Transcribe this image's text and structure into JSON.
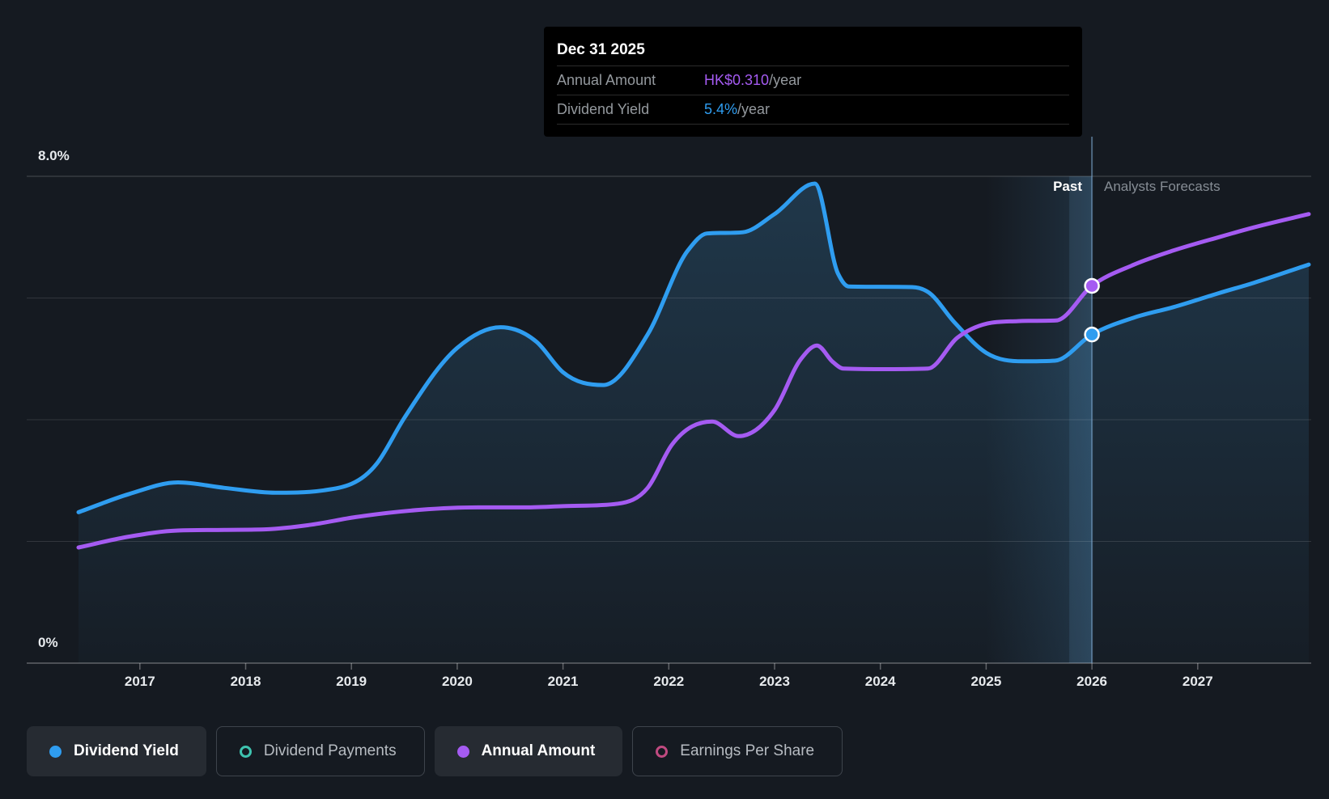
{
  "labels": {
    "past": "Past",
    "forecasts": "Analysts Forecasts"
  },
  "tooltip": {
    "date": "Dec 31 2025",
    "rows": [
      {
        "label": "Annual Amount",
        "value": "HK$0.310",
        "unit": "/year",
        "color": "#A55BF2"
      },
      {
        "label": "Dividend Yield",
        "value": "5.4%",
        "unit": "/year",
        "color": "#2F9DF0"
      }
    ]
  },
  "legend": [
    {
      "label": "Dividend Yield",
      "swatch": "filled",
      "color": "#2F9DF0",
      "active": true
    },
    {
      "label": "Dividend Payments",
      "swatch": "ring",
      "color": "#3EC3AF",
      "active": false
    },
    {
      "label": "Annual Amount",
      "swatch": "filled",
      "color": "#A55BF2",
      "active": true
    },
    {
      "label": "Earnings Per Share",
      "swatch": "ring",
      "color": "#C04A80",
      "active": false
    }
  ],
  "chart_data": {
    "type": "line",
    "x_domain": [
      2016.42,
      2028.07
    ],
    "x_ticks": [
      2017,
      2018,
      2019,
      2020,
      2021,
      2022,
      2023,
      2024,
      2025,
      2026,
      2027
    ],
    "y_axis": {
      "min": 0,
      "max": 8,
      "unit": "%",
      "grid_values": [
        2,
        4,
        6,
        8
      ],
      "labels": [
        {
          "value": 8,
          "text": "8.0%"
        },
        {
          "value": 0,
          "text": "0%"
        }
      ]
    },
    "today_x": 2026.0,
    "highlight_band": [
      2025.0,
      2026.0
    ],
    "legend_position": "bottom",
    "series": [
      {
        "name": "Dividend Yield",
        "color": "#2F9DF0",
        "area": true,
        "marker": [
          2026.0,
          5.4
        ],
        "points": [
          [
            2016.42,
            2.48
          ],
          [
            2016.9,
            2.78
          ],
          [
            2017.36,
            2.97
          ],
          [
            2017.8,
            2.88
          ],
          [
            2018.28,
            2.8
          ],
          [
            2018.74,
            2.84
          ],
          [
            2019.24,
            3.28
          ],
          [
            2019.5,
            4.03
          ],
          [
            2020.0,
            5.18
          ],
          [
            2020.41,
            5.52
          ],
          [
            2020.75,
            5.28
          ],
          [
            2021.0,
            4.78
          ],
          [
            2021.38,
            4.57
          ],
          [
            2021.8,
            5.4
          ],
          [
            2022.18,
            6.78
          ],
          [
            2022.36,
            7.06
          ],
          [
            2022.7,
            7.08
          ],
          [
            2023.0,
            7.38
          ],
          [
            2023.38,
            7.88
          ],
          [
            2023.6,
            6.4
          ],
          [
            2023.7,
            6.19
          ],
          [
            2024.3,
            6.18
          ],
          [
            2024.45,
            6.1
          ],
          [
            2024.7,
            5.6
          ],
          [
            2025.0,
            5.1
          ],
          [
            2025.35,
            4.96
          ],
          [
            2025.65,
            4.97
          ],
          [
            2026.0,
            5.4
          ],
          [
            2026.4,
            5.68
          ],
          [
            2026.77,
            5.85
          ],
          [
            2027.2,
            6.08
          ],
          [
            2027.53,
            6.25
          ],
          [
            2028.05,
            6.55
          ]
        ]
      },
      {
        "name": "Annual Amount",
        "color": "#A55BF2",
        "area": false,
        "marker": [
          2026.0,
          6.2
        ],
        "points": [
          [
            2016.42,
            1.9
          ],
          [
            2016.9,
            2.08
          ],
          [
            2017.36,
            2.18
          ],
          [
            2017.8,
            2.19
          ],
          [
            2018.2,
            2.2
          ],
          [
            2018.6,
            2.27
          ],
          [
            2019.04,
            2.4
          ],
          [
            2019.65,
            2.52
          ],
          [
            2020.2,
            2.56
          ],
          [
            2020.65,
            2.56
          ],
          [
            2021.0,
            2.58
          ],
          [
            2021.52,
            2.62
          ],
          [
            2021.8,
            2.88
          ],
          [
            2022.03,
            3.59
          ],
          [
            2022.41,
            3.97
          ],
          [
            2022.66,
            3.73
          ],
          [
            2023.0,
            4.16
          ],
          [
            2023.25,
            5.0
          ],
          [
            2023.4,
            5.22
          ],
          [
            2023.55,
            4.95
          ],
          [
            2023.65,
            4.84
          ],
          [
            2024.0,
            4.83
          ],
          [
            2024.45,
            4.84
          ],
          [
            2024.73,
            5.35
          ],
          [
            2025.01,
            5.58
          ],
          [
            2025.3,
            5.62
          ],
          [
            2025.66,
            5.63
          ],
          [
            2026.0,
            6.2
          ],
          [
            2026.4,
            6.55
          ],
          [
            2026.77,
            6.78
          ],
          [
            2027.2,
            7.0
          ],
          [
            2027.53,
            7.16
          ],
          [
            2028.05,
            7.38
          ]
        ]
      }
    ]
  }
}
